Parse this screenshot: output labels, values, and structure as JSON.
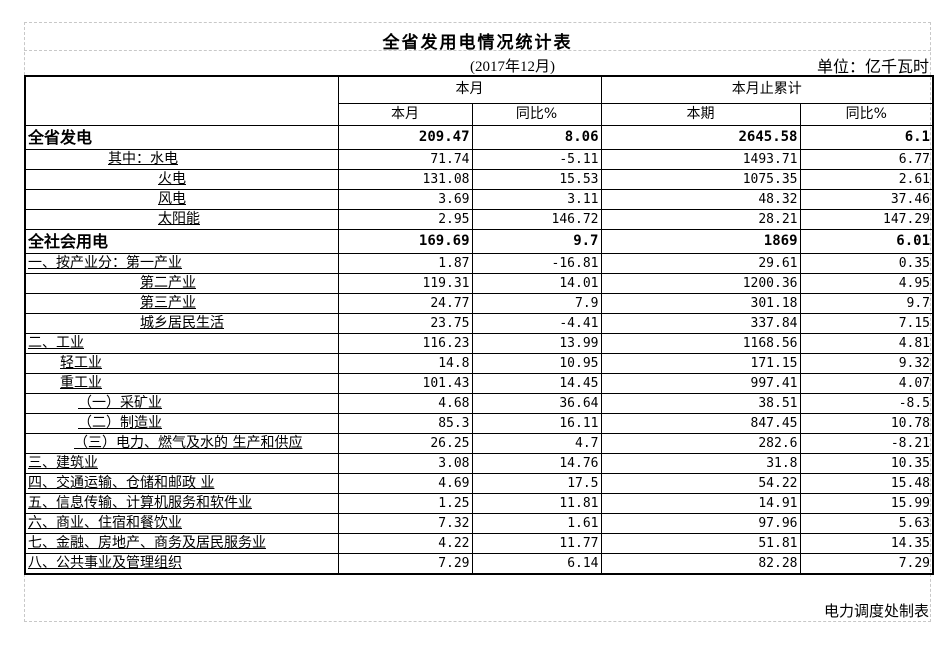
{
  "title": "全省发用电情况统计表",
  "period": "(2017年12月)",
  "unit": "单位：亿千瓦时",
  "footer": "电力调度处制表",
  "headers": {
    "this_month": "本月",
    "cumulative": "本月止累计",
    "sub": [
      "本月",
      "同比%",
      "本期",
      "同比%"
    ]
  },
  "rows": [
    {
      "label": "全省发电",
      "indent": 0,
      "bold": true,
      "values": [
        "209.47",
        "8.06",
        "2645.58",
        "6.1"
      ]
    },
    {
      "label": "其中：水电",
      "indent": 80,
      "values": [
        "71.74",
        "-5.11",
        "1493.71",
        "6.77"
      ]
    },
    {
      "label": "火电",
      "indent": 130,
      "values": [
        "131.08",
        "15.53",
        "1075.35",
        "2.61"
      ]
    },
    {
      "label": "风电",
      "indent": 130,
      "values": [
        "3.69",
        "3.11",
        "48.32",
        "37.46"
      ]
    },
    {
      "label": "太阳能",
      "indent": 130,
      "values": [
        "2.95",
        "146.72",
        "28.21",
        "147.29"
      ]
    },
    {
      "label": "全社会用电",
      "indent": 0,
      "bold": true,
      "values": [
        "169.69",
        "9.7",
        "1869",
        "6.01"
      ]
    },
    {
      "label": "一、按产业分：第一产业",
      "indent": 0,
      "values": [
        "1.87",
        "-16.81",
        "29.61",
        "0.35"
      ]
    },
    {
      "label": "第二产业",
      "indent": 112,
      "values": [
        "119.31",
        "14.01",
        "1200.36",
        "4.95"
      ]
    },
    {
      "label": "第三产业",
      "indent": 112,
      "values": [
        "24.77",
        "7.9",
        "301.18",
        "9.7"
      ]
    },
    {
      "label": "城乡居民生活",
      "indent": 112,
      "values": [
        "23.75",
        "-4.41",
        "337.84",
        "7.15"
      ]
    },
    {
      "label": "二、工业",
      "indent": 0,
      "values": [
        "116.23",
        "13.99",
        "1168.56",
        "4.81"
      ]
    },
    {
      "label": "轻工业",
      "indent": 32,
      "values": [
        "14.8",
        "10.95",
        "171.15",
        "9.32"
      ]
    },
    {
      "label": "重工业",
      "indent": 32,
      "values": [
        "101.43",
        "14.45",
        "997.41",
        "4.07"
      ]
    },
    {
      "label": "（一）采矿业",
      "indent": 50,
      "values": [
        "4.68",
        "36.64",
        "38.51",
        "-8.5"
      ]
    },
    {
      "label": "（二）制造业",
      "indent": 50,
      "values": [
        "85.3",
        "16.11",
        "847.45",
        "10.78"
      ]
    },
    {
      "label": "（三）电力、燃气及水的 生产和供应",
      "indent": 46,
      "values": [
        "26.25",
        "4.7",
        "282.6",
        "-8.21"
      ]
    },
    {
      "label": "三、建筑业",
      "indent": 0,
      "values": [
        "3.08",
        "14.76",
        "31.8",
        "10.35"
      ]
    },
    {
      "label": "四、交通运输、仓储和邮政 业",
      "indent": 0,
      "values": [
        "4.69",
        "17.5",
        "54.22",
        "15.48"
      ]
    },
    {
      "label": "五、信息传输、计算机服务和软件业",
      "indent": 0,
      "values": [
        "1.25",
        "11.81",
        "14.91",
        "15.99"
      ]
    },
    {
      "label": "六、商业、住宿和餐饮业",
      "indent": 0,
      "values": [
        "7.32",
        "1.61",
        "97.96",
        "5.63"
      ]
    },
    {
      "label": "七、金融、房地产、商务及居民服务业",
      "indent": 0,
      "values": [
        "4.22",
        "11.77",
        "51.81",
        "14.35"
      ]
    },
    {
      "label": "八、公共事业及管理组织",
      "indent": 0,
      "values": [
        "7.29",
        "6.14",
        "82.28",
        "7.29"
      ]
    }
  ]
}
